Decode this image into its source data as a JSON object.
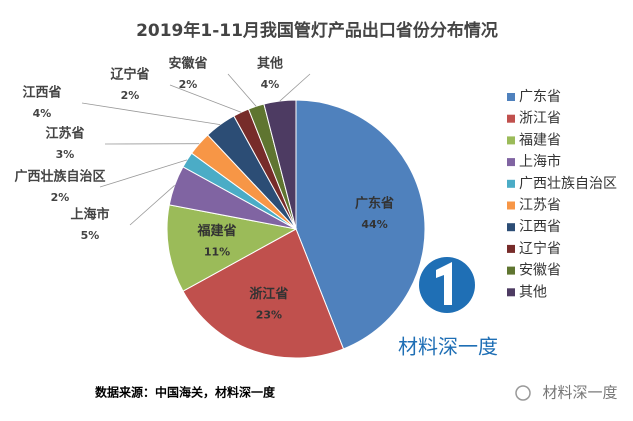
{
  "chart_data": {
    "type": "pie",
    "title": "2019年1-11月我国管灯产品出口省份分布情况",
    "categories": [
      "广东省",
      "浙江省",
      "福建省",
      "上海市",
      "广西壮族自治区",
      "江苏省",
      "江西省",
      "辽宁省",
      "安徽省",
      "其他"
    ],
    "values": [
      44,
      23,
      11,
      5,
      2,
      3,
      4,
      2,
      2,
      4
    ],
    "value_labels": [
      "44%",
      "23%",
      "11%",
      "5%",
      "2%",
      "3%",
      "4%",
      "2%",
      "2%",
      "4%"
    ],
    "colors": [
      "#4f81bd",
      "#c0504d",
      "#9bbb59",
      "#8064a2",
      "#4bacc6",
      "#f79646",
      "#2c4d75",
      "#772c2a",
      "#5f7530",
      "#4d3b62"
    ],
    "legend": "right",
    "source": "数据来源：中国海关，材料深一度",
    "watermarks": [
      "材料深一度",
      "材料深一度"
    ]
  }
}
